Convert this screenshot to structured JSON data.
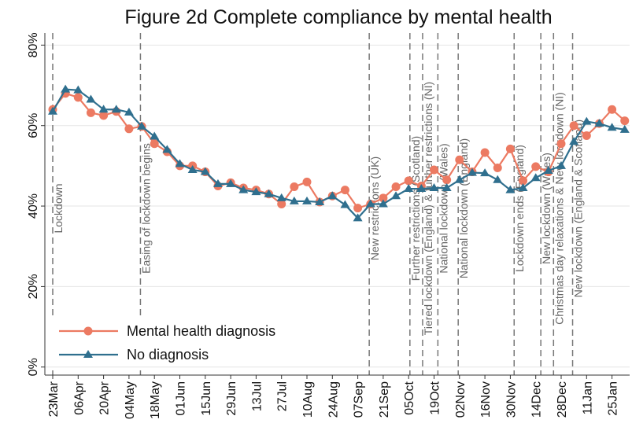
{
  "chart_data": {
    "type": "line",
    "title": "Figure 2d Complete compliance by mental health",
    "categories": [
      "23Mar",
      null,
      "06Apr",
      null,
      "20Apr",
      null,
      "04May",
      null,
      "18May",
      null,
      "01Jun",
      null,
      "15Jun",
      null,
      "29Jun",
      null,
      "13Jul",
      null,
      "27Jul",
      null,
      "10Aug",
      null,
      "24Aug",
      null,
      "07Sep",
      null,
      "21Sep",
      null,
      "05Oct",
      null,
      "19Oct",
      null,
      "02Nov",
      null,
      "16Nov",
      null,
      "30Nov",
      null,
      "14Dec",
      null,
      "28Dec",
      null,
      "11Jan",
      null,
      "25Jan",
      null
    ],
    "series": [
      {
        "name": "Mental health diagnosis",
        "color": "#ec7a62",
        "marker": "circle",
        "values": [
          64,
          68,
          67,
          63.2,
          62.5,
          63.5,
          59.2,
          59.8,
          55.5,
          53.5,
          50,
          50,
          48.5,
          45,
          45.8,
          44.5,
          44,
          43,
          40.5,
          44.8,
          46,
          41,
          42.5,
          44,
          39.5,
          40.5,
          42,
          44.8,
          46.3,
          45,
          49,
          46.5,
          51.5,
          48.5,
          53.3,
          49.5,
          54.2,
          46.3,
          49.8,
          48.5,
          55.5,
          60,
          57.5,
          60.5,
          64,
          61.2
        ]
      },
      {
        "name": "No diagnosis",
        "color": "#2f6f8e",
        "marker": "triangle",
        "values": [
          63.5,
          69,
          68.8,
          66.5,
          64,
          64,
          63.3,
          59.8,
          57.3,
          54,
          50.5,
          49,
          48.5,
          45.5,
          45.5,
          44,
          43.5,
          43,
          42,
          41.2,
          41.2,
          41,
          42.5,
          40.3,
          37,
          40.5,
          40.5,
          42.5,
          44.3,
          44.3,
          44.5,
          44.5,
          46.5,
          48.3,
          48.2,
          46.5,
          44,
          44.5,
          47,
          48.8,
          50,
          56,
          61,
          60.5,
          59.5,
          59
        ]
      }
    ],
    "ylim": [
      -2,
      83
    ],
    "yticks": [
      {
        "value": 0,
        "label": "0%"
      },
      {
        "value": 20,
        "label": "20%"
      },
      {
        "value": 40,
        "label": "40%"
      },
      {
        "value": 60,
        "label": "60%"
      },
      {
        "value": 80,
        "label": "80%"
      }
    ],
    "grid": true,
    "legend": "lower left",
    "annotations": [
      {
        "text": "Lockdown",
        "x": 0
      },
      {
        "text": "Easing of lockdown begins",
        "x": 6.9
      },
      {
        "text": "New restrictions (UK)",
        "x": 24.9
      },
      {
        "text": "Further restrictions (Scotland)",
        "x": 28.1
      },
      {
        "text": "Tiered lockdown (England) & further restrictions (NI)",
        "x": 29.1
      },
      {
        "text": "National lockdown (Wales)",
        "x": 30.3
      },
      {
        "text": "National lockdown (England)",
        "x": 31.9
      },
      {
        "text": "Lockdown ends (England)",
        "x": 36.3
      },
      {
        "text": "New lockdown (Wales)",
        "x": 38.4
      },
      {
        "text": "Christmas day relaxations & New lockdown (NI)",
        "x": 39.4
      },
      {
        "text": "New lockdown (England & Scotland)",
        "x": 40.9
      }
    ]
  }
}
